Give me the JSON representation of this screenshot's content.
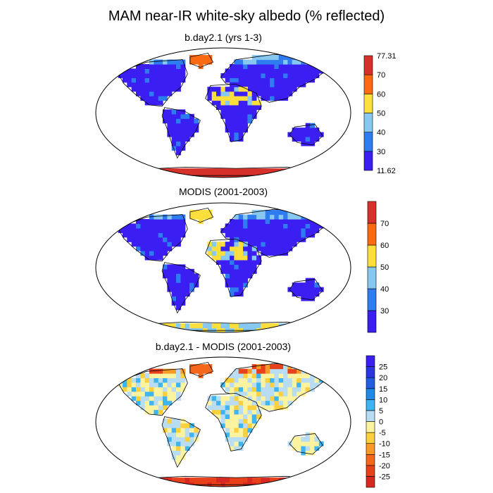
{
  "title": "MAM near-IR white-sky albedo (% reflected)",
  "chart_data": [
    {
      "type": "heatmap",
      "title": "b.day2.1 (yrs 1-3)",
      "projection": "robinson",
      "colorbar": {
        "levels": [
          "11.62",
          "30",
          "40",
          "50",
          "60",
          "70",
          "77.31"
        ],
        "colors": [
          "#3a1ef2",
          "#2f7cf0",
          "#86c8f0",
          "#fcdf3c",
          "#fb6a10",
          "#d6302b"
        ],
        "tick_labels": [
          "11.62",
          "30",
          "40",
          "50",
          "60",
          "70",
          "77.31"
        ]
      }
    },
    {
      "type": "heatmap",
      "title": "MODIS (2001-2003)",
      "projection": "robinson",
      "colorbar": {
        "levels": [
          "",
          "30",
          "40",
          "50",
          "60",
          "70",
          ""
        ],
        "colors": [
          "#3a1ef2",
          "#2f7cf0",
          "#86c8f0",
          "#fcdf3c",
          "#fb6a10",
          "#d6302b"
        ],
        "tick_labels": [
          "30",
          "40",
          "50",
          "60",
          "70"
        ]
      }
    },
    {
      "type": "heatmap",
      "title": "b.day2.1 - MODIS (2001-2003)",
      "projection": "robinson",
      "colorbar": {
        "levels": [
          "",
          "25",
          "20",
          "15",
          "10",
          "5",
          "0",
          "-5",
          "-10",
          "-15",
          "-20",
          "-25",
          ""
        ],
        "colors": [
          "#d62820",
          "#e8401a",
          "#f5681c",
          "#f99a26",
          "#fcd03c",
          "#fcf3a0",
          "#b8dcf2",
          "#3fb4f0",
          "#2288e8",
          "#255be0",
          "#2a34e0",
          "#3a1ef2"
        ],
        "tick_labels": [
          "25",
          "20",
          "15",
          "10",
          "5",
          "0",
          "-5",
          "-10",
          "-15",
          "-20",
          "-25"
        ]
      }
    }
  ]
}
